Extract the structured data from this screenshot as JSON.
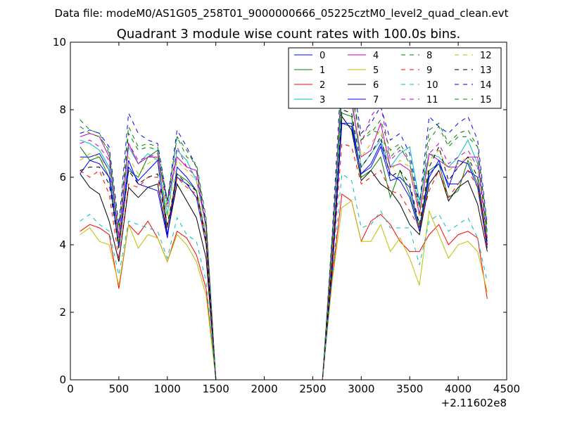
{
  "chart_data": {
    "type": "line",
    "suptitle": "Data file: modeM0/AS1G05_258T01_9000000666_05225cztM0_level2_quad_clean.evt",
    "title": "Quadrant 3 module wise count rates with 100.0s bins.",
    "xlabel": "",
    "ylabel": "",
    "x_offset_label": "+2.11602e8",
    "xlim": [
      0,
      4500
    ],
    "ylim": [
      0,
      10
    ],
    "xticks": [
      0,
      500,
      1000,
      1500,
      2000,
      2500,
      3000,
      3500,
      4000,
      4500
    ],
    "yticks": [
      0,
      2,
      4,
      6,
      8,
      10
    ],
    "grid": false,
    "legend_position": "top-right",
    "x": [
      100,
      200,
      300,
      400,
      500,
      600,
      700,
      800,
      900,
      1000,
      1100,
      1200,
      1300,
      1400,
      1500,
      1600,
      1700,
      1800,
      1900,
      2000,
      2100,
      2200,
      2300,
      2400,
      2500,
      2600,
      2700,
      2800,
      2900,
      3000,
      3100,
      3200,
      3300,
      3400,
      3500,
      3600,
      3700,
      3800,
      3900,
      4000,
      4100,
      4200,
      4300
    ],
    "series": [
      {
        "name": "0",
        "color": "#0000ff",
        "dash": "solid",
        "values": [
          6.6,
          6.6,
          6.7,
          6.2,
          4.0,
          6.5,
          5.8,
          5.7,
          5.6,
          4.2,
          6.3,
          6.0,
          5.6,
          4.2,
          0,
          0,
          0,
          0,
          0,
          0,
          0,
          0,
          0,
          0,
          0,
          0,
          3.5,
          7.6,
          7.5,
          6.1,
          6.3,
          6.9,
          5.9,
          6.0,
          5.7,
          4.5,
          6.1,
          6.4,
          5.8,
          5.8,
          6.2,
          6.0,
          4.0
        ]
      },
      {
        "name": "1",
        "color": "#008000",
        "dash": "solid",
        "values": [
          6.9,
          6.5,
          6.6,
          6.0,
          4.0,
          6.2,
          6.0,
          6.6,
          6.8,
          4.5,
          6.1,
          5.9,
          5.6,
          4.2,
          0,
          0,
          0,
          0,
          0,
          0,
          0,
          0,
          0,
          0,
          0,
          0,
          3.4,
          7.9,
          7.8,
          6.0,
          6.2,
          6.6,
          5.4,
          6.2,
          5.5,
          4.5,
          6.2,
          6.4,
          5.4,
          5.6,
          6.5,
          5.8,
          4.1
        ]
      },
      {
        "name": "2",
        "color": "#ff0000",
        "dash": "solid",
        "values": [
          4.4,
          4.6,
          4.5,
          4.3,
          2.7,
          4.6,
          4.3,
          4.7,
          4.2,
          3.5,
          4.4,
          4.2,
          3.7,
          2.7,
          0,
          0,
          0,
          0,
          0,
          0,
          0,
          0,
          0,
          0,
          0,
          0,
          3.0,
          5.5,
          5.3,
          4.1,
          4.7,
          4.9,
          4.6,
          4.1,
          3.8,
          3.8,
          4.3,
          4.6,
          4.0,
          4.3,
          4.4,
          4.2,
          2.4
        ]
      },
      {
        "name": "3",
        "color": "#00bfbf",
        "dash": "solid",
        "values": [
          7.1,
          7.0,
          6.8,
          6.3,
          4.2,
          6.9,
          6.4,
          6.7,
          6.5,
          4.9,
          6.8,
          6.5,
          5.9,
          4.6,
          0,
          0,
          0,
          0,
          0,
          0,
          0,
          0,
          0,
          0,
          0,
          0,
          3.9,
          8.4,
          8.4,
          6.3,
          6.7,
          7.1,
          6.3,
          6.7,
          6.9,
          5.3,
          6.7,
          6.6,
          6.3,
          6.6,
          7.1,
          6.4,
          4.4
        ]
      },
      {
        "name": "4",
        "color": "#bf00bf",
        "dash": "solid",
        "values": [
          7.2,
          7.3,
          7.2,
          6.6,
          4.2,
          7.0,
          6.4,
          6.6,
          6.6,
          5.3,
          6.6,
          6.3,
          6.2,
          4.5,
          0,
          0,
          0,
          0,
          0,
          0,
          0,
          0,
          0,
          0,
          0,
          0,
          4.0,
          8.7,
          8.2,
          6.6,
          6.8,
          7.6,
          6.3,
          6.4,
          6.2,
          4.9,
          6.7,
          6.5,
          6.3,
          6.3,
          6.6,
          6.6,
          4.2
        ]
      },
      {
        "name": "5",
        "color": "#bfbf00",
        "dash": "solid",
        "values": [
          4.3,
          4.5,
          4.1,
          4.0,
          2.8,
          4.6,
          3.9,
          4.3,
          4.2,
          3.5,
          4.3,
          4.0,
          3.5,
          2.5,
          0,
          0,
          0,
          0,
          0,
          0,
          0,
          0,
          0,
          0,
          0,
          0,
          2.9,
          5.1,
          5.3,
          4.1,
          4.1,
          4.6,
          3.8,
          4.2,
          3.6,
          2.8,
          5.0,
          4.3,
          3.6,
          4.0,
          4.1,
          3.8,
          2.6
        ]
      },
      {
        "name": "6",
        "color": "#000000",
        "dash": "solid",
        "values": [
          6.1,
          5.7,
          5.5,
          4.7,
          3.5,
          5.7,
          5.4,
          5.7,
          5.8,
          4.3,
          5.8,
          5.3,
          4.8,
          3.6,
          0,
          0,
          0,
          0,
          0,
          0,
          0,
          0,
          0,
          0,
          0,
          0,
          3.4,
          7.8,
          7.4,
          5.9,
          6.2,
          5.8,
          5.6,
          5.2,
          4.6,
          4.3,
          5.8,
          6.2,
          5.3,
          5.7,
          5.9,
          5.2,
          3.8
        ]
      },
      {
        "name": "7",
        "color": "#0000ff",
        "dash": "solid",
        "values": [
          6.1,
          6.5,
          6.4,
          6.0,
          3.9,
          6.3,
          5.9,
          6.2,
          6.5,
          4.3,
          6.0,
          5.8,
          5.4,
          4.0,
          0,
          0,
          0,
          0,
          0,
          0,
          0,
          0,
          0,
          0,
          0,
          0,
          3.2,
          7.6,
          7.6,
          6.1,
          6.4,
          7.0,
          6.1,
          5.9,
          5.4,
          4.4,
          6.0,
          6.5,
          5.7,
          6.5,
          6.4,
          5.7,
          3.9
        ]
      },
      {
        "name": "8",
        "color": "#008000",
        "dash": "dashed",
        "values": [
          7.7,
          7.4,
          7.3,
          6.7,
          4.3,
          7.3,
          6.8,
          6.9,
          6.8,
          5.2,
          7.2,
          6.6,
          6.4,
          4.8,
          0,
          0,
          0,
          0,
          0,
          0,
          0,
          0,
          0,
          0,
          0,
          0,
          4.2,
          8.5,
          8.5,
          7.1,
          7.4,
          7.3,
          6.6,
          6.9,
          6.4,
          5.1,
          7.1,
          7.5,
          6.9,
          7.2,
          7.2,
          6.9,
          4.3
        ]
      },
      {
        "name": "9",
        "color": "#ff0000",
        "dash": "dashed",
        "values": [
          6.2,
          6.0,
          6.2,
          5.5,
          3.6,
          5.8,
          5.7,
          6.0,
          6.0,
          4.5,
          6.0,
          5.7,
          5.5,
          4.0,
          0,
          0,
          0,
          0,
          0,
          0,
          0,
          0,
          0,
          0,
          0,
          0,
          3.2,
          7.0,
          6.9,
          5.8,
          6.0,
          6.2,
          5.6,
          5.5,
          5.0,
          4.5,
          5.6,
          6.2,
          5.4,
          5.8,
          6.2,
          5.7,
          3.9
        ]
      },
      {
        "name": "10",
        "color": "#00bfbf",
        "dash": "dashed",
        "values": [
          4.7,
          4.9,
          4.6,
          4.4,
          3.1,
          4.7,
          4.6,
          4.5,
          4.4,
          3.6,
          4.8,
          4.3,
          4.1,
          2.9,
          0,
          0,
          0,
          0,
          0,
          0,
          0,
          0,
          0,
          0,
          0,
          0,
          3.0,
          6.1,
          5.9,
          4.5,
          4.6,
          5.0,
          4.5,
          4.5,
          4.5,
          3.4,
          4.7,
          4.9,
          4.4,
          4.6,
          4.8,
          4.2,
          2.9
        ]
      },
      {
        "name": "11",
        "color": "#bf00bf",
        "dash": "dashed",
        "values": [
          7.0,
          7.1,
          6.9,
          6.5,
          4.3,
          7.0,
          6.5,
          6.6,
          6.7,
          5.1,
          6.9,
          6.3,
          6.0,
          4.5,
          0,
          0,
          0,
          0,
          0,
          0,
          0,
          0,
          0,
          0,
          0,
          0,
          3.9,
          9.0,
          8.5,
          7.0,
          7.8,
          8.2,
          6.5,
          6.8,
          6.5,
          4.9,
          6.7,
          7.0,
          6.4,
          6.6,
          6.8,
          6.3,
          4.1
        ]
      },
      {
        "name": "12",
        "color": "#bfbf00",
        "dash": "dashed",
        "values": [
          6.5,
          6.7,
          6.6,
          6.2,
          4.1,
          6.6,
          6.1,
          6.4,
          6.6,
          4.8,
          6.5,
          6.2,
          5.9,
          4.3,
          0,
          0,
          0,
          0,
          0,
          0,
          0,
          0,
          0,
          0,
          0,
          0,
          3.7,
          9.3,
          8.6,
          6.6,
          7.0,
          7.4,
          6.2,
          6.5,
          6.3,
          4.8,
          6.5,
          6.8,
          6.2,
          6.4,
          6.6,
          6.3,
          4.2
        ]
      },
      {
        "name": "13",
        "color": "#000000",
        "dash": "dashed",
        "values": [
          6.2,
          6.3,
          6.3,
          5.8,
          3.9,
          6.2,
          5.8,
          6.0,
          6.1,
          4.6,
          6.1,
          5.8,
          5.6,
          4.1,
          0,
          0,
          0,
          0,
          0,
          0,
          0,
          0,
          0,
          0,
          0,
          0,
          3.5,
          8.0,
          7.9,
          6.3,
          6.7,
          7.2,
          6.0,
          6.2,
          5.8,
          4.6,
          6.3,
          6.9,
          5.9,
          6.3,
          6.6,
          6.0,
          4.0
        ]
      },
      {
        "name": "14",
        "color": "#0000ff",
        "dash": "dashed",
        "values": [
          7.3,
          7.4,
          7.3,
          6.9,
          4.6,
          7.9,
          7.3,
          7.1,
          7.0,
          5.3,
          7.4,
          6.9,
          6.3,
          4.6,
          0,
          0,
          0,
          0,
          0,
          0,
          0,
          0,
          0,
          0,
          0,
          0,
          4.3,
          9.4,
          9.0,
          7.3,
          7.6,
          8.1,
          7.1,
          7.3,
          6.7,
          5.2,
          7.8,
          7.5,
          7.3,
          7.6,
          7.8,
          7.1,
          4.6
        ]
      },
      {
        "name": "15",
        "color": "#008000",
        "dash": "dashed",
        "values": [
          7.5,
          7.3,
          7.2,
          6.8,
          4.5,
          7.5,
          6.9,
          7.0,
          6.9,
          5.3,
          7.2,
          6.8,
          6.3,
          4.7,
          0,
          0,
          0,
          0,
          0,
          0,
          0,
          0,
          0,
          0,
          0,
          0,
          4.1,
          8.6,
          8.6,
          7.1,
          7.3,
          7.7,
          6.8,
          7.0,
          6.5,
          5.1,
          7.4,
          7.6,
          7.0,
          7.3,
          7.4,
          6.9,
          4.5
        ]
      }
    ]
  }
}
